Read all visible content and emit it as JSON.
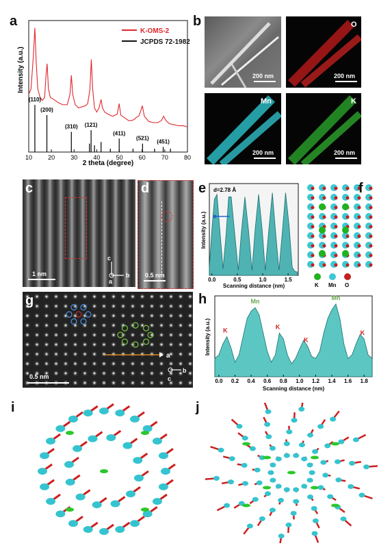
{
  "panels": {
    "a": "a",
    "b": "b",
    "c": "c",
    "d": "d",
    "e": "e",
    "f": "f",
    "g": "g",
    "h": "h",
    "i": "i",
    "j": "j"
  },
  "panel_b": {
    "scale": "200 nm",
    "maps": [
      "O",
      "Mn",
      "K"
    ]
  },
  "panel_c": {
    "scale": "1 nm",
    "axis_c": "c",
    "axis_b": "b",
    "axis_a": "a"
  },
  "panel_d": {
    "scale": "0.5 nm"
  },
  "panel_e": {
    "annotation": "d=2.78 Å"
  },
  "panel_f": {
    "legend": [
      "K",
      "Mn",
      "O"
    ]
  },
  "panel_g": {
    "scale": "0.5 nm",
    "axis_a": "a",
    "axis_b": "b",
    "axis_c": "c"
  },
  "chart_data": [
    {
      "type": "line",
      "panel": "a",
      "xlabel": "2 theta (degree)",
      "ylabel": "Intensity (a.u.)",
      "xlim": [
        10,
        80
      ],
      "x_ticks": [
        10,
        20,
        30,
        40,
        50,
        60,
        70,
        80
      ],
      "legend_placement": "top-right",
      "series": [
        {
          "name": "K-OMS-2",
          "color": "#e0262b",
          "x": [
            10,
            11,
            12,
            12.7,
            13.3,
            14,
            15,
            16,
            17,
            17.6,
            18.1,
            18.7,
            19.5,
            21,
            23,
            25,
            27,
            28.2,
            28.8,
            29.4,
            30.5,
            32,
            33.5,
            35,
            36,
            37,
            37.6,
            38.2,
            39,
            40,
            41,
            41.9,
            42.5,
            43.5,
            45,
            47,
            49,
            49.9,
            50.6,
            52,
            54,
            55.5,
            56.5,
            57.5,
            58.5,
            59.4,
            60.1,
            61,
            63,
            65,
            67,
            68.5,
            69.5,
            70.5,
            72,
            74,
            76,
            78,
            80
          ],
          "y": [
            0.55,
            0.6,
            0.9,
            1.18,
            0.85,
            0.6,
            0.52,
            0.49,
            0.52,
            0.72,
            0.84,
            0.6,
            0.52,
            0.5,
            0.47,
            0.45,
            0.45,
            0.55,
            0.73,
            0.55,
            0.45,
            0.42,
            0.43,
            0.44,
            0.46,
            0.6,
            0.88,
            0.6,
            0.42,
            0.38,
            0.42,
            0.5,
            0.42,
            0.38,
            0.36,
            0.34,
            0.36,
            0.46,
            0.35,
            0.33,
            0.3,
            0.3,
            0.31,
            0.33,
            0.34,
            0.39,
            0.44,
            0.34,
            0.29,
            0.28,
            0.28,
            0.3,
            0.34,
            0.3,
            0.27,
            0.26,
            0.25,
            0.25,
            0.24
          ]
        },
        {
          "name": "JCPDS 72-1982",
          "color": "#111111",
          "type": "stick",
          "peaks": [
            {
              "x": 12.7,
              "y": 0.28,
              "label": "(110)"
            },
            {
              "x": 18.0,
              "y": 0.22,
              "label": "(200)"
            },
            {
              "x": 28.8,
              "y": 0.12,
              "label": "(310)"
            },
            {
              "x": 36.8,
              "y": 0.05
            },
            {
              "x": 37.5,
              "y": 0.13,
              "label": "(121)"
            },
            {
              "x": 39.0,
              "y": 0.04
            },
            {
              "x": 41.9,
              "y": 0.06
            },
            {
              "x": 46.0,
              "y": 0.02
            },
            {
              "x": 49.9,
              "y": 0.08,
              "label": "(411)"
            },
            {
              "x": 56.0,
              "y": 0.02
            },
            {
              "x": 60.2,
              "y": 0.05,
              "label": "(521)"
            },
            {
              "x": 65.5,
              "y": 0.02
            },
            {
              "x": 69.3,
              "y": 0.03,
              "label": "(451)"
            },
            {
              "x": 72.5,
              "y": 0.02
            }
          ]
        }
      ]
    },
    {
      "type": "area",
      "panel": "e",
      "xlabel": "Scanning distance (nm)",
      "ylabel": "Intensity (a.u.)",
      "xlim": [
        -0.05,
        1.7
      ],
      "x_ticks": [
        0.0,
        0.5,
        1.0,
        1.5
      ],
      "x": [
        -0.05,
        0.0,
        0.05,
        0.1,
        0.15,
        0.22,
        0.28,
        0.33,
        0.38,
        0.45,
        0.52,
        0.58,
        0.65,
        0.72,
        0.79,
        0.85,
        0.92,
        0.99,
        1.05,
        1.12,
        1.19,
        1.25,
        1.32,
        1.39,
        1.45,
        1.52,
        1.58,
        1.63,
        1.68
      ],
      "y": [
        0.1,
        0.55,
        0.92,
        0.98,
        0.6,
        0.08,
        0.5,
        0.95,
        0.95,
        0.5,
        0.06,
        0.52,
        0.95,
        0.55,
        0.06,
        0.55,
        0.98,
        0.55,
        0.06,
        0.55,
        1.0,
        0.55,
        0.06,
        0.55,
        1.0,
        0.6,
        0.1,
        0.05,
        0.04
      ]
    },
    {
      "type": "area",
      "panel": "h",
      "xlabel": "Scanning distance (nm)",
      "ylabel": "Intensity (a.u.)",
      "xlim": [
        -0.05,
        1.9
      ],
      "x_ticks": [
        0.0,
        0.2,
        0.4,
        0.6,
        0.8,
        1.0,
        1.2,
        1.4,
        1.6,
        1.8
      ],
      "x": [
        -0.05,
        0.0,
        0.05,
        0.1,
        0.15,
        0.2,
        0.25,
        0.3,
        0.35,
        0.4,
        0.45,
        0.5,
        0.55,
        0.6,
        0.65,
        0.7,
        0.75,
        0.8,
        0.85,
        0.9,
        0.95,
        1.0,
        1.05,
        1.1,
        1.15,
        1.2,
        1.25,
        1.3,
        1.35,
        1.4,
        1.45,
        1.5,
        1.55,
        1.6,
        1.65,
        1.7,
        1.75,
        1.8,
        1.85,
        1.9
      ],
      "y": [
        0.25,
        0.3,
        0.45,
        0.55,
        0.4,
        0.2,
        0.3,
        0.55,
        0.8,
        0.9,
        0.95,
        0.85,
        0.6,
        0.35,
        0.2,
        0.3,
        0.6,
        0.52,
        0.3,
        0.18,
        0.25,
        0.38,
        0.5,
        0.42,
        0.28,
        0.25,
        0.35,
        0.6,
        0.8,
        0.92,
        1.0,
        0.8,
        0.45,
        0.25,
        0.3,
        0.45,
        0.58,
        0.52,
        0.3,
        0.25
      ],
      "annotations": [
        {
          "x": 0.08,
          "label": "K"
        },
        {
          "x": 0.45,
          "label": "Mn"
        },
        {
          "x": 0.73,
          "label": "K"
        },
        {
          "x": 1.08,
          "label": "K"
        },
        {
          "x": 1.45,
          "label": "Mn"
        },
        {
          "x": 1.78,
          "label": "K"
        }
      ]
    }
  ]
}
